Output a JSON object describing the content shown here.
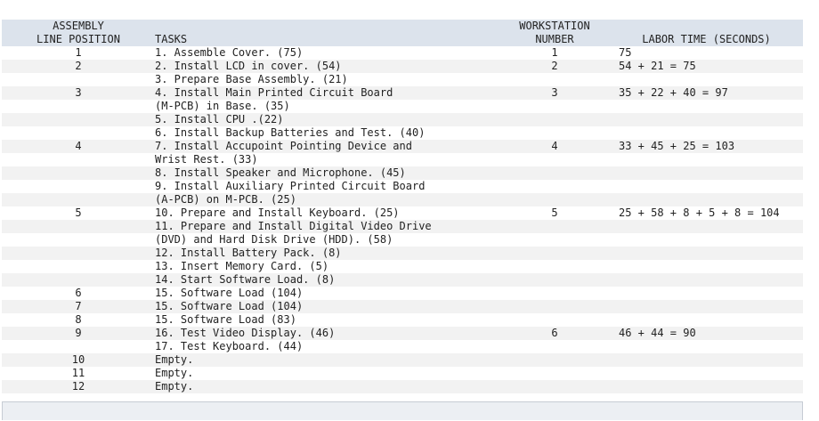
{
  "headers": {
    "position": [
      "ASSEMBLY",
      "LINE POSITION"
    ],
    "tasks": "TASKS",
    "workstation": [
      "WORKSTATION",
      "NUMBER"
    ],
    "labor": "LABOR TIME (SECONDS)"
  },
  "rows": [
    {
      "pos": "1",
      "task": "1. Assemble Cover. (75)",
      "ws": "1",
      "labor": "75"
    },
    {
      "pos": "2",
      "task": "2. Install LCD in cover. (54)",
      "ws": "2",
      "labor": "54 + 21 = 75"
    },
    {
      "pos": "",
      "task": "3. Prepare Base Assembly. (21)",
      "ws": "",
      "labor": ""
    },
    {
      "pos": "3",
      "task": "4. Install Main Printed Circuit Board",
      "ws": "3",
      "labor": "35 + 22 + 40 = 97"
    },
    {
      "pos": "",
      "task": "(M-PCB) in Base. (35)",
      "ws": "",
      "labor": ""
    },
    {
      "pos": "",
      "task": "5. Install CPU .(22)",
      "ws": "",
      "labor": ""
    },
    {
      "pos": "",
      "task": "6. Install Backup Batteries and Test. (40)",
      "ws": "",
      "labor": ""
    },
    {
      "pos": "4",
      "task": "7. Install Accupoint Pointing Device and",
      "ws": "4",
      "labor": "33 + 45 + 25 = 103"
    },
    {
      "pos": "",
      "task": "Wrist Rest. (33)",
      "ws": "",
      "labor": ""
    },
    {
      "pos": "",
      "task": "8. Install Speaker and Microphone. (45)",
      "ws": "",
      "labor": ""
    },
    {
      "pos": "",
      "task": "9. Install Auxiliary Printed Circuit Board",
      "ws": "",
      "labor": ""
    },
    {
      "pos": "",
      "task": "(A-PCB) on M-PCB. (25)",
      "ws": "",
      "labor": ""
    },
    {
      "pos": "5",
      "task": "10. Prepare and Install Keyboard. (25)",
      "ws": "5",
      "labor": "25 + 58 + 8 + 5 + 8 = 104"
    },
    {
      "pos": "",
      "task": "11. Prepare and Install Digital Video Drive",
      "ws": "",
      "labor": ""
    },
    {
      "pos": "",
      "task": "(DVD) and Hard Disk Drive (HDD). (58)",
      "ws": "",
      "labor": ""
    },
    {
      "pos": "",
      "task": "12. Install Battery Pack. (8)",
      "ws": "",
      "labor": ""
    },
    {
      "pos": "",
      "task": "13. Insert Memory Card. (5)",
      "ws": "",
      "labor": ""
    },
    {
      "pos": "",
      "task": "14. Start Software Load. (8)",
      "ws": "",
      "labor": ""
    },
    {
      "pos": "6",
      "task": "15. Software Load (104)",
      "ws": "",
      "labor": ""
    },
    {
      "pos": "7",
      "task": "15. Software Load (104)",
      "ws": "",
      "labor": ""
    },
    {
      "pos": "8",
      "task": "15. Software Load (83)",
      "ws": "",
      "labor": ""
    },
    {
      "pos": "9",
      "task": "16. Test Video Display. (46)",
      "ws": "6",
      "labor": "46 + 44 = 90"
    },
    {
      "pos": "",
      "task": "17. Test Keyboard. (44)",
      "ws": "",
      "labor": ""
    },
    {
      "pos": "10",
      "task": "Empty.",
      "ws": "",
      "labor": ""
    },
    {
      "pos": "11",
      "task": "Empty.",
      "ws": "",
      "labor": ""
    },
    {
      "pos": "12",
      "task": "Empty.",
      "ws": "",
      "labor": ""
    }
  ]
}
